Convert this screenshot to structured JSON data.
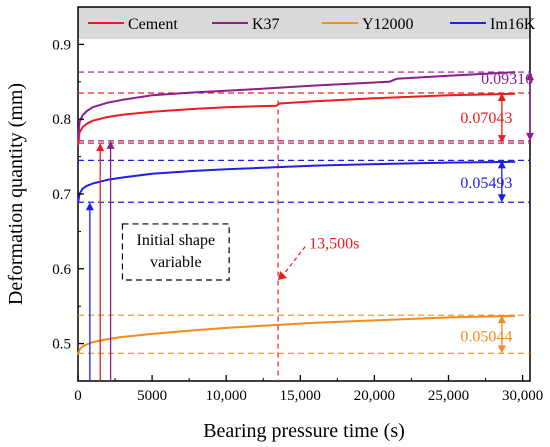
{
  "chart_data": {
    "type": "line",
    "xlabel": "Bearing pressure time (s)",
    "ylabel": "Deformation quantity (mm)",
    "xlim": [
      0,
      30500
    ],
    "ylim": [
      0.45,
      0.95
    ],
    "x_ticks": [
      0,
      5000,
      10000,
      15000,
      20000,
      25000,
      30000
    ],
    "x_tick_labels": [
      "0",
      "5000",
      "10,000",
      "15,000",
      "20,000",
      "25,000",
      "30,000"
    ],
    "y_ticks": [
      0.5,
      0.6,
      0.7,
      0.8,
      0.9
    ],
    "y_tick_labels": [
      "0.5",
      "0.6",
      "0.7",
      "0.8",
      "0.9"
    ],
    "legend_placement": "top",
    "series": [
      {
        "name": "Cement",
        "color": "#ee1c1c",
        "x": [
          0,
          100,
          300,
          600,
          1000,
          2000,
          3000,
          5000,
          8000,
          10000,
          13400,
          13600,
          16000,
          20000,
          25000,
          29500
        ],
        "y": [
          0.765,
          0.782,
          0.789,
          0.794,
          0.798,
          0.803,
          0.806,
          0.81,
          0.814,
          0.816,
          0.818,
          0.821,
          0.824,
          0.828,
          0.832,
          0.834
        ]
      },
      {
        "name": "K37",
        "color": "#8b1f8f",
        "x": [
          0,
          100,
          300,
          600,
          1000,
          2000,
          3000,
          5000,
          8000,
          10000,
          13500,
          16000,
          20000,
          21000,
          21500,
          25000,
          29500
        ],
        "y": [
          0.772,
          0.796,
          0.805,
          0.811,
          0.816,
          0.822,
          0.826,
          0.832,
          0.836,
          0.838,
          0.842,
          0.845,
          0.849,
          0.85,
          0.854,
          0.858,
          0.863
        ]
      },
      {
        "name": "Y12000",
        "color": "#f28c1e",
        "x": [
          0,
          100,
          300,
          600,
          1000,
          2000,
          3000,
          5000,
          8000,
          10000,
          13500,
          16000,
          20000,
          25000,
          29500
        ],
        "y": [
          0.485,
          0.492,
          0.496,
          0.499,
          0.502,
          0.506,
          0.509,
          0.513,
          0.518,
          0.521,
          0.525,
          0.528,
          0.531,
          0.535,
          0.537
        ]
      },
      {
        "name": "Im16K",
        "color": "#1f1fe6",
        "x": [
          0,
          100,
          300,
          600,
          1000,
          2000,
          3000,
          5000,
          8000,
          10000,
          13500,
          16000,
          20000,
          25000,
          29500
        ],
        "y": [
          0.688,
          0.7,
          0.707,
          0.711,
          0.714,
          0.719,
          0.722,
          0.727,
          0.731,
          0.733,
          0.736,
          0.738,
          0.74,
          0.742,
          0.743
        ]
      }
    ],
    "reference_lines": [
      {
        "series": "K37",
        "y": 0.863,
        "color": "#8b1f8f"
      },
      {
        "series": "Cement",
        "y": 0.835,
        "color": "#ee1c1c"
      },
      {
        "series": "Cement",
        "y": 0.768,
        "color": "#ee1c1c"
      },
      {
        "series": "K37",
        "y": 0.771,
        "color": "#8b1f8f"
      },
      {
        "series": "Im16K",
        "y": 0.745,
        "color": "#1f1fe6"
      },
      {
        "series": "Im16K",
        "y": 0.689,
        "color": "#1f1fe6"
      },
      {
        "series": "Y12000",
        "y": 0.538,
        "color": "#f28c1e"
      },
      {
        "series": "Y12000",
        "y": 0.487,
        "color": "#f28c1e"
      }
    ],
    "range_arrows": [
      {
        "label": "0.09316",
        "x": 30500,
        "y_from": 0.771,
        "y_to": 0.863,
        "color": "#8b1f8f",
        "label_x": 27200,
        "label_y": 0.855
      },
      {
        "label": "0.07043",
        "x": 28600,
        "y_from": 0.768,
        "y_to": 0.835,
        "color": "#ee1c1c",
        "label_x": 25800,
        "label_y": 0.803
      },
      {
        "label": "0.05493",
        "x": 28600,
        "y_from": 0.689,
        "y_to": 0.745,
        "color": "#1f1fe6",
        "label_x": 25800,
        "label_y": 0.716
      },
      {
        "label": "0.05044",
        "x": 28600,
        "y_from": 0.487,
        "y_to": 0.538,
        "color": "#f28c1e",
        "label_x": 25800,
        "label_y": 0.511
      }
    ],
    "initial_arrows": [
      {
        "series": "Im16K",
        "x": 800,
        "y_top": 0.689,
        "color": "#1f1fe6"
      },
      {
        "series": "Cement",
        "x": 1500,
        "y_top": 0.768,
        "color": "#ee1c1c"
      },
      {
        "series": "K37",
        "x": 2200,
        "y_top": 0.771,
        "color": "#8b1f8f"
      }
    ],
    "time_marker": {
      "x": 13500,
      "label": "13,500s",
      "color": "#ee1c1c",
      "label_x": 15600,
      "label_y": 0.635,
      "arrow_tip_y": 0.585
    },
    "annotation_box": {
      "lines": [
        "Initial shape",
        "variable"
      ],
      "x0": 3000,
      "x1": 10200,
      "y0": 0.66,
      "y1": 0.585
    }
  }
}
